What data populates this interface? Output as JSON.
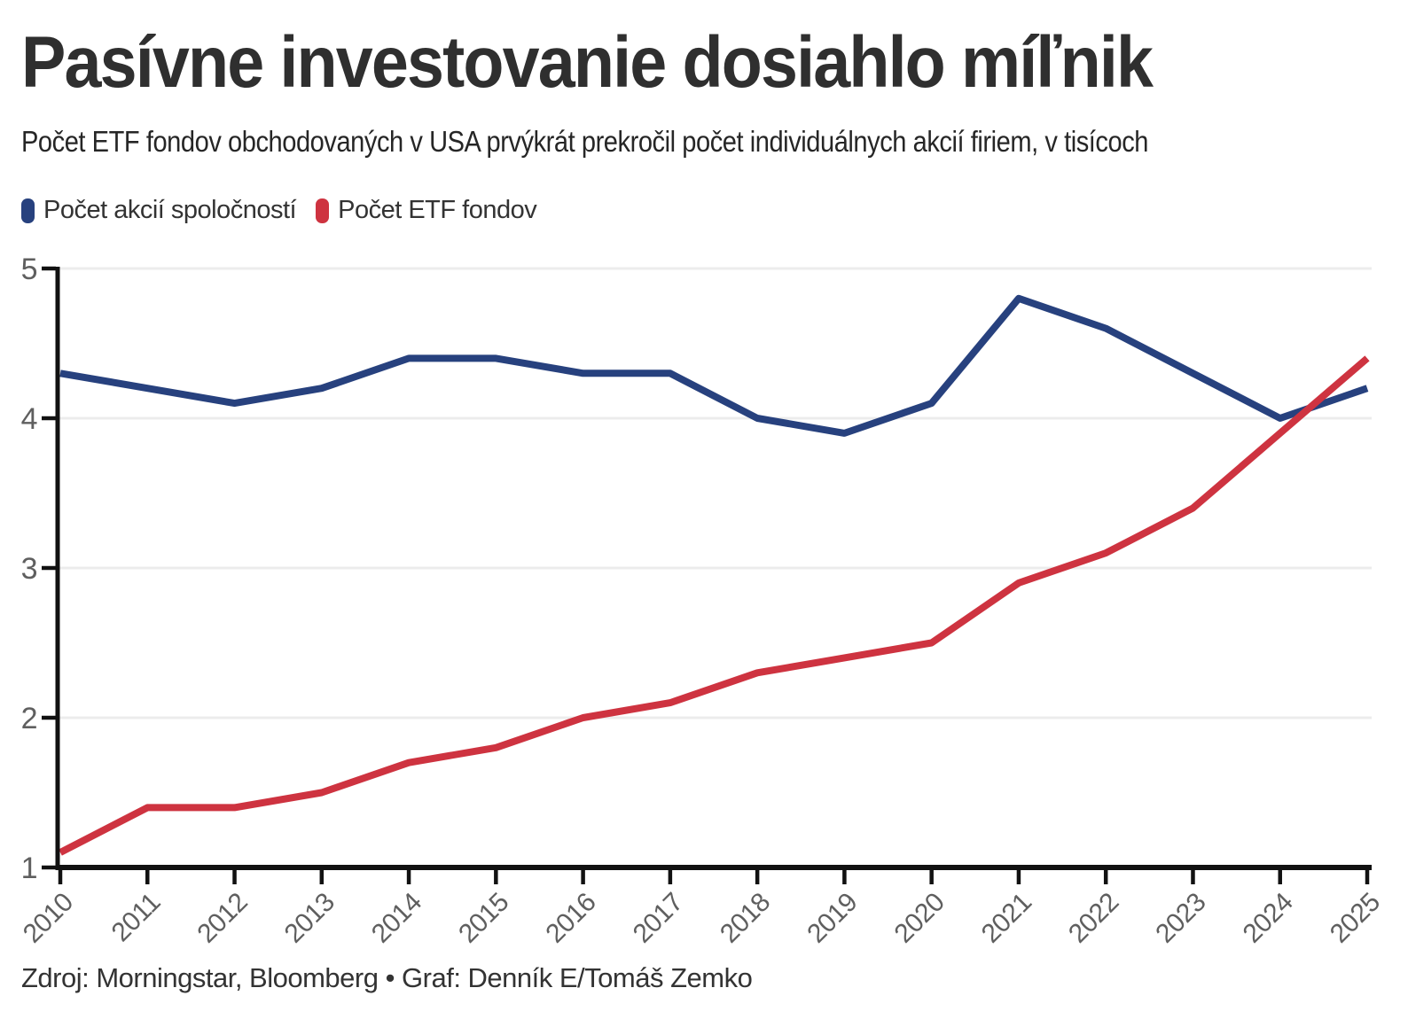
{
  "header": {
    "title": "Pasívne investovanie dosiahlo míľnik",
    "subtitle": "Počet ETF fondov obchodovaných v USA prvýkrát prekročil počet individuálnych akcií firiem, v tisícoch"
  },
  "legend": [
    {
      "label": "Počet akcií spoločností",
      "color": "#27417e"
    },
    {
      "label": "Počet ETF fondov",
      "color": "#ce3340"
    }
  ],
  "chart_data": {
    "type": "line",
    "categories": [
      "2010",
      "2011",
      "2012",
      "2013",
      "2014",
      "2015",
      "2016",
      "2017",
      "2018",
      "2019",
      "2020",
      "2021",
      "2022",
      "2023",
      "2024",
      "2025"
    ],
    "series": [
      {
        "name": "Počet akcií spoločností",
        "color": "#27417e",
        "values": [
          4.3,
          4.2,
          4.1,
          4.2,
          4.4,
          4.4,
          4.3,
          4.3,
          4.0,
          3.9,
          4.1,
          4.8,
          4.6,
          4.3,
          4.0,
          4.2
        ]
      },
      {
        "name": "Počet ETF fondov",
        "color": "#ce3340",
        "values": [
          1.1,
          1.4,
          1.4,
          1.5,
          1.7,
          1.8,
          2.0,
          2.1,
          2.3,
          2.4,
          2.5,
          2.9,
          3.1,
          3.4,
          3.9,
          4.4
        ]
      }
    ],
    "title": "Pasívne investovanie dosiahlo míľnik",
    "xlabel": "",
    "ylabel": "",
    "ylim": [
      1,
      5
    ],
    "yticks": [
      1,
      2,
      3,
      4,
      5
    ],
    "grid": "horizontal-only",
    "grid_color": "#ececec",
    "axis_color": "#111111",
    "tick_label_color": "#5f5f5f",
    "legend_position": "top-left"
  },
  "footer": {
    "source": "Zdroj: Morningstar, Bloomberg • Graf: Denník E/Tomáš Zemko"
  }
}
